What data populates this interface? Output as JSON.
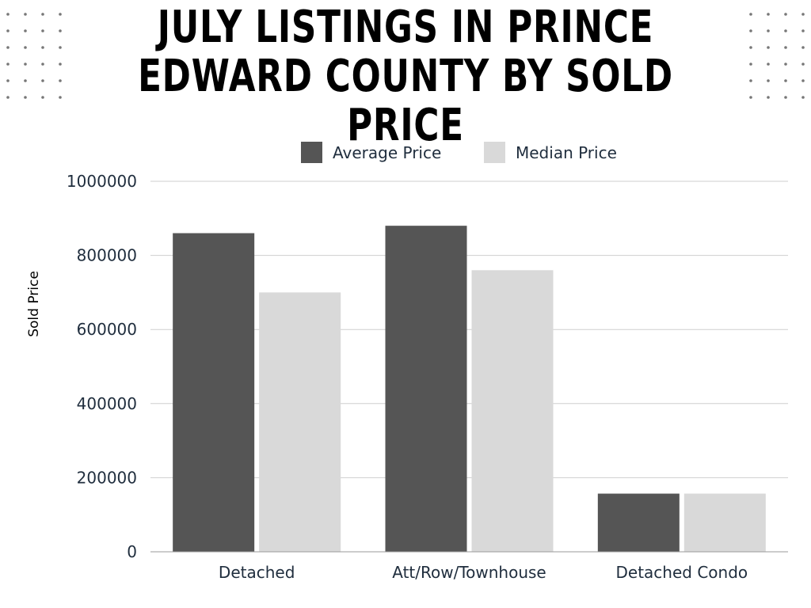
{
  "title_line1": "JULY LISTINGS IN PRINCE",
  "title_line2": "EDWARD COUNTY BY SOLD PRICE",
  "chart_data": {
    "type": "bar",
    "categories": [
      "Detached",
      "Att/Row/Townhouse",
      "Detached Condo"
    ],
    "series": [
      {
        "name": "Average Price",
        "color": "#555555",
        "values": [
          860000,
          880000,
          157000
        ]
      },
      {
        "name": "Median Price",
        "color": "#d9d9d9",
        "values": [
          700000,
          760000,
          157000
        ]
      }
    ],
    "ylabel": "Sold Price",
    "ylim": [
      0,
      1000000
    ],
    "yticks": [
      "0",
      "200000",
      "400000",
      "600000",
      "800000",
      "1000000"
    ],
    "grid": true,
    "legend": "top"
  }
}
